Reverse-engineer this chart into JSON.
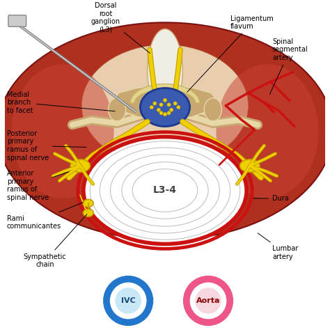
{
  "bg": "#ffffff",
  "colors": {
    "muscle_dark": "#b03020",
    "muscle_mid": "#c84030",
    "muscle_light": "#e09080",
    "skin_beige": "#f0dfc0",
    "bone_tan": "#c8a870",
    "bone_light": "#e8d8a8",
    "nerve_yellow": "#f0d000",
    "nerve_edge": "#c0a000",
    "disc_white": "#f5f5f5",
    "disc_gray": "#d8d8d8",
    "canal_blue": "#3a5ab0",
    "canal_edge": "#1a3a90",
    "dura_red": "#cc1111",
    "artery_red": "#cc1111",
    "vein_blue": "#2277cc",
    "aorta_pink": "#ee5588",
    "needle_gray": "#888888",
    "vertebra_brown": "#b07830",
    "black": "#111111",
    "white": "#ffffff"
  },
  "labels": {
    "dorsal_root": "Dorsal\nroot\nganglion\n(L3)",
    "ligamentum": "Ligamentum\nflavum",
    "medial_branch": "Medial\nbranch\nto facet",
    "posterior_primary": "Posterior\nprimary\nramus of\nspinal nerve",
    "anterior_primary": "Anterior\nprimary\nramus of\nspinal nerve",
    "rami": "Rami\ncommunicantes",
    "sympathetic": "Sympathetic\nchain",
    "ivc": "IVC",
    "aorta": "Aorta",
    "spinal_segmental": "Spinal\nsegmental\nartery",
    "dura": "Dura",
    "lumbar_artery": "Lumbar\nartery",
    "l34": "L3-4"
  }
}
